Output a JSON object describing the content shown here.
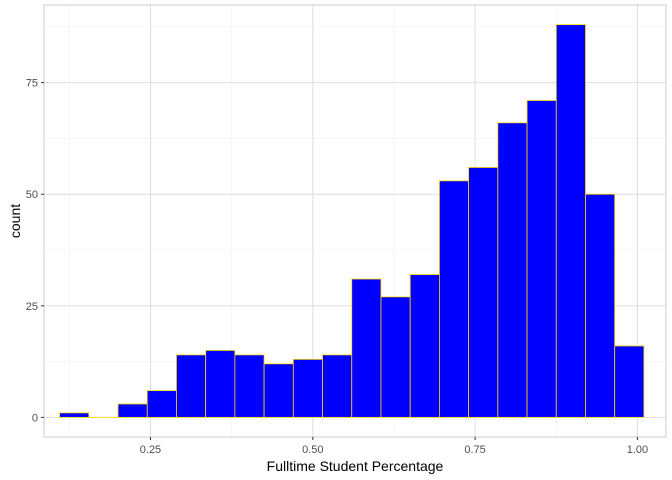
{
  "chart_data": {
    "type": "bar",
    "subtype": "histogram",
    "xlabel": "Fulltime Student Percentage",
    "ylabel": "count",
    "xlim": [
      0.086,
      1.044
    ],
    "ylim": [
      -4.4,
      92.4
    ],
    "x_ticks": [
      0.25,
      0.5,
      0.75,
      1.0
    ],
    "x_tick_labels": [
      "0.25",
      "0.50",
      "0.75",
      "1.00"
    ],
    "y_ticks": [
      0,
      25,
      50,
      75
    ],
    "y_tick_labels": [
      "0",
      "25",
      "50",
      "75"
    ],
    "grid": true,
    "bins": [
      {
        "x0": 0.11,
        "x1": 0.155,
        "count": 1
      },
      {
        "x0": 0.155,
        "x1": 0.2,
        "count": 0
      },
      {
        "x0": 0.2,
        "x1": 0.245,
        "count": 3
      },
      {
        "x0": 0.245,
        "x1": 0.29,
        "count": 6
      },
      {
        "x0": 0.29,
        "x1": 0.335,
        "count": 14
      },
      {
        "x0": 0.335,
        "x1": 0.38,
        "count": 15
      },
      {
        "x0": 0.38,
        "x1": 0.425,
        "count": 14
      },
      {
        "x0": 0.425,
        "x1": 0.47,
        "count": 12
      },
      {
        "x0": 0.47,
        "x1": 0.515,
        "count": 13
      },
      {
        "x0": 0.515,
        "x1": 0.56,
        "count": 14
      },
      {
        "x0": 0.56,
        "x1": 0.605,
        "count": 31
      },
      {
        "x0": 0.605,
        "x1": 0.65,
        "count": 27
      },
      {
        "x0": 0.65,
        "x1": 0.695,
        "count": 32
      },
      {
        "x0": 0.695,
        "x1": 0.74,
        "count": 53
      },
      {
        "x0": 0.74,
        "x1": 0.785,
        "count": 56
      },
      {
        "x0": 0.785,
        "x1": 0.83,
        "count": 66
      },
      {
        "x0": 0.83,
        "x1": 0.875,
        "count": 71
      },
      {
        "x0": 0.875,
        "x1": 0.92,
        "count": 88
      },
      {
        "x0": 0.92,
        "x1": 0.965,
        "count": 50
      },
      {
        "x0": 0.965,
        "x1": 1.01,
        "count": 16
      }
    ],
    "colors": {
      "fill": "#0000ff",
      "outline": "#ffd700",
      "panel_background": "#ffffff",
      "panel_border": "#cccccc",
      "grid_major": "#dedede",
      "grid_minor": "#efefef"
    }
  }
}
